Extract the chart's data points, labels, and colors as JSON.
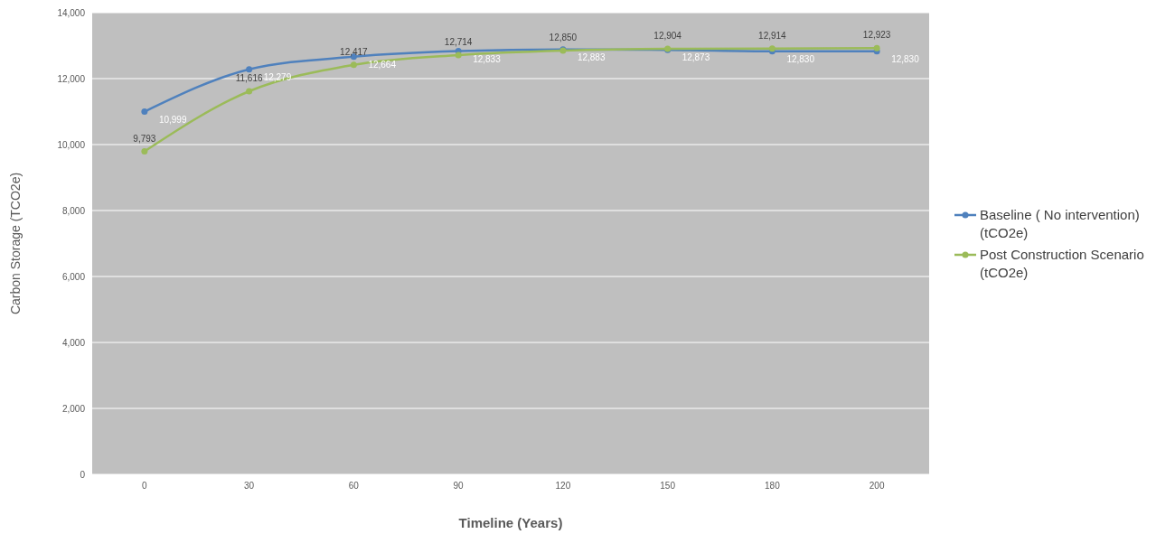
{
  "chart_data": {
    "type": "line",
    "xlabel": "Timeline (Years)",
    "ylabel": "Carbon Storage (TCO2e)",
    "categories": [
      "0",
      "30",
      "60",
      "90",
      "120",
      "150",
      "180",
      "200"
    ],
    "series": [
      {
        "name": "Baseline ( No intervention) (tCO2e)",
        "color": "#4f81bd",
        "values": [
          10999,
          12279,
          12664,
          12833,
          12883,
          12873,
          12830,
          12830
        ],
        "value_labels": [
          "10,999",
          "12,279",
          "12,664",
          "12,833",
          "12,883",
          "12,873",
          "12,830",
          "12,830"
        ]
      },
      {
        "name": "Post Construction Scenario (tCO2e)",
        "color": "#9bbb59",
        "values": [
          9793,
          11616,
          12417,
          12714,
          12850,
          12904,
          12914,
          12923
        ],
        "value_labels": [
          "9,793",
          "11,616",
          "12,417",
          "12,714",
          "12,850",
          "12,904",
          "12,914",
          "12,923"
        ]
      }
    ],
    "ylim": [
      0,
      14000
    ],
    "yticks": [
      {
        "value": 0,
        "label": "0"
      },
      {
        "value": 2000,
        "label": "2,000"
      },
      {
        "value": 4000,
        "label": "4,000"
      },
      {
        "value": 6000,
        "label": "6,000"
      },
      {
        "value": 8000,
        "label": "8,000"
      },
      {
        "value": 10000,
        "label": "10,000"
      },
      {
        "value": 12000,
        "label": "12,000"
      },
      {
        "value": 14000,
        "label": "14,000"
      }
    ],
    "grid": "y",
    "legend": "right",
    "marker": "circle"
  }
}
